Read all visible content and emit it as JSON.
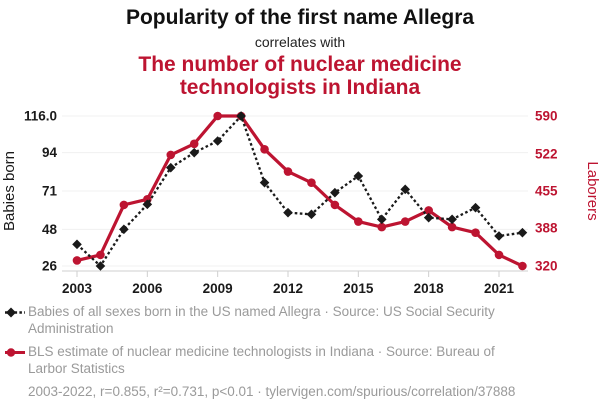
{
  "theme": {
    "accent_red": "#bd1431",
    "series_black": "#1a1a1a",
    "muted_gray": "#9a9a9a",
    "grid_gray": "#f0f0f0",
    "axis_gray": "#cfcfcf",
    "background": "#ffffff"
  },
  "header": {
    "title": "Popularity of the first name Allegra",
    "connector": "correlates with",
    "subtitle": "The number of nuclear medicine technologists in Indiana"
  },
  "chart_data": {
    "type": "line",
    "x": [
      2003,
      2004,
      2005,
      2006,
      2007,
      2008,
      2009,
      2010,
      2011,
      2012,
      2013,
      2014,
      2015,
      2016,
      2017,
      2018,
      2019,
      2020,
      2021,
      2022
    ],
    "x_ticks": [
      2003,
      2006,
      2009,
      2012,
      2015,
      2018,
      2021
    ],
    "grid": "horizontal",
    "legend_position": "below",
    "left_axis": {
      "label": "Babies born",
      "range": [
        26,
        116
      ],
      "ticks": [
        26,
        48,
        71,
        94,
        116
      ],
      "tick_labels": [
        "26",
        "48",
        "71",
        "94",
        "116.0"
      ]
    },
    "right_axis": {
      "label": "Laborers",
      "range": [
        320,
        590
      ],
      "ticks": [
        320,
        388,
        455,
        522,
        590
      ],
      "tick_labels": [
        "320",
        "388",
        "455",
        "522",
        "590"
      ]
    },
    "series": [
      {
        "name": "Babies of all sexes born in the US named Allegra",
        "axis": "left",
        "color": "#1a1a1a",
        "marker": "diamond",
        "line_style": "dotted",
        "values": [
          39,
          26,
          48,
          63,
          85,
          94,
          101,
          116,
          76,
          58,
          57,
          70,
          80,
          54,
          72,
          55,
          54,
          61,
          44,
          46
        ]
      },
      {
        "name": "BLS estimate of nuclear medicine technologists in Indiana",
        "axis": "right",
        "color": "#bd1431",
        "marker": "circle",
        "line_style": "solid",
        "values": [
          330,
          340,
          430,
          440,
          520,
          540,
          590,
          590,
          530,
          490,
          470,
          430,
          400,
          390,
          400,
          420,
          390,
          380,
          340,
          320
        ]
      }
    ]
  },
  "legend": [
    {
      "text": "Babies of all sexes born in the US named Allegra · Source: US Social Security Administration"
    },
    {
      "text": "BLS estimate of nuclear medicine technologists in Indiana · Source: Bureau of Larbor Statistics"
    }
  ],
  "footer": {
    "text": "2003-2022, r=0.855, r²=0.731, p<0.01 · tylervigen.com/spurious/correlation/37888"
  }
}
